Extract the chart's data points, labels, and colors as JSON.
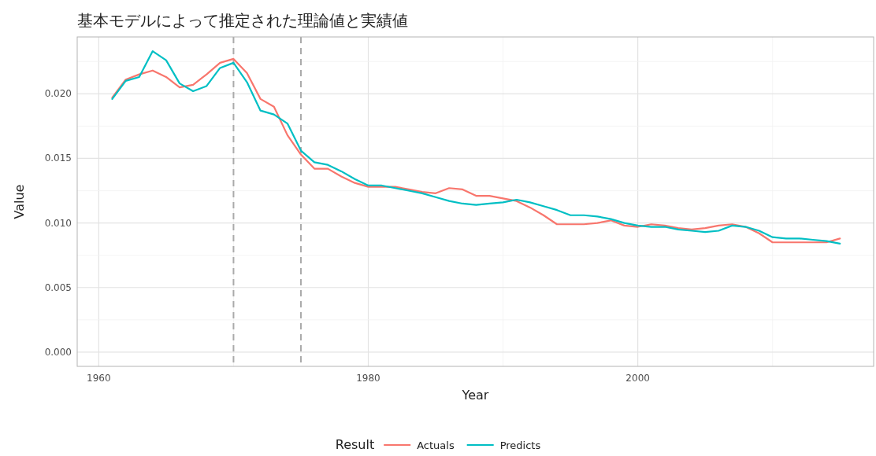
{
  "chart_data": {
    "type": "line",
    "title": "基本モデルによって推定された理論値と実績値",
    "xlabel": "Year",
    "ylabel": "Value",
    "legend_title": "Result",
    "legend": "bottom",
    "grid": true,
    "line_style": "solid",
    "x": [
      1961,
      1962,
      1963,
      1964,
      1965,
      1966,
      1967,
      1968,
      1969,
      1970,
      1971,
      1972,
      1973,
      1974,
      1975,
      1976,
      1977,
      1978,
      1979,
      1980,
      1981,
      1982,
      1983,
      1984,
      1985,
      1986,
      1987,
      1988,
      1989,
      1990,
      1991,
      1992,
      1993,
      1994,
      1995,
      1996,
      1997,
      1998,
      1999,
      2000,
      2001,
      2002,
      2003,
      2004,
      2005,
      2006,
      2007,
      2008,
      2009,
      2010,
      2011,
      2012,
      2013,
      2014,
      2015
    ],
    "series": [
      {
        "name": "Actuals",
        "color": "#f8766d",
        "values": [
          0.0197,
          0.0211,
          0.0215,
          0.0218,
          0.0213,
          0.0205,
          0.0207,
          0.0215,
          0.0224,
          0.0227,
          0.0216,
          0.0196,
          0.019,
          0.0168,
          0.0153,
          0.0142,
          0.0142,
          0.0136,
          0.0131,
          0.0128,
          0.0128,
          0.0128,
          0.0126,
          0.0124,
          0.0123,
          0.0127,
          0.0126,
          0.0121,
          0.0121,
          0.0119,
          0.0117,
          0.0112,
          0.0106,
          0.0099,
          0.0099,
          0.0099,
          0.01,
          0.0102,
          0.0098,
          0.0097,
          0.0099,
          0.0098,
          0.0096,
          0.0095,
          0.0096,
          0.0098,
          0.0099,
          0.0097,
          0.0092,
          0.0085,
          0.0085,
          0.0085,
          0.0085,
          0.0085,
          0.0088
        ]
      },
      {
        "name": "Predicts",
        "color": "#00bfc4",
        "values": [
          0.0196,
          0.021,
          0.0213,
          0.0233,
          0.0226,
          0.0208,
          0.0202,
          0.0206,
          0.022,
          0.0224,
          0.0209,
          0.0187,
          0.0184,
          0.0177,
          0.0156,
          0.0147,
          0.0145,
          0.014,
          0.0134,
          0.0129,
          0.0129,
          0.0127,
          0.0125,
          0.0123,
          0.012,
          0.0117,
          0.0115,
          0.0114,
          0.0115,
          0.0116,
          0.0118,
          0.0116,
          0.0113,
          0.011,
          0.0106,
          0.0106,
          0.0105,
          0.0103,
          0.01,
          0.0098,
          0.0097,
          0.0097,
          0.0095,
          0.0094,
          0.0093,
          0.0094,
          0.0098,
          0.0097,
          0.0094,
          0.0089,
          0.0088,
          0.0088,
          0.0087,
          0.0086,
          0.0084
        ]
      }
    ],
    "xlim": [
      1958.4,
      2017.5
    ],
    "ylim": [
      -0.0011,
      0.0244
    ],
    "xticks": [
      1960,
      {
        "value": 1970,
        "label": null
      },
      1980,
      {
        "value": 1990,
        "label": null
      },
      2000,
      {
        "value": 2010,
        "label": null
      }
    ],
    "yticks": [
      {
        "value": 0,
        "label": "0.000"
      },
      {
        "value": 0.0025,
        "label": null
      },
      0.005,
      {
        "value": 0.0075,
        "label": null
      },
      {
        "value": 0.01,
        "label": "0.010"
      },
      {
        "value": 0.0125,
        "label": null
      },
      0.015,
      {
        "value": 0.0175,
        "label": null
      },
      {
        "value": 0.02,
        "label": "0.020"
      },
      {
        "value": 0.0225,
        "label": null
      }
    ],
    "ref_lines": [
      {
        "axis": "x",
        "value": 1970,
        "color": "#aaaaaa",
        "line_style": "dashed"
      },
      {
        "axis": "x",
        "value": 1975,
        "color": "#aaaaaa",
        "line_style": "dashed"
      }
    ]
  }
}
